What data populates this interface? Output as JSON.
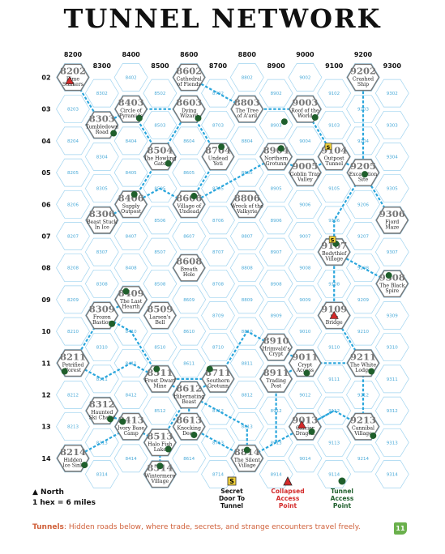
{
  "title": "TUNNEL NETWORK",
  "columns": [
    "8200",
    "8300",
    "8400",
    "8500",
    "8600",
    "8700",
    "8800",
    "8900",
    "9000",
    "9100",
    "9200",
    "9300"
  ],
  "rows": [
    "02",
    "03",
    "04",
    "05",
    "06",
    "07",
    "08",
    "09",
    "10",
    "11",
    "12",
    "13",
    "14"
  ],
  "locations": [
    {
      "id": "8202",
      "name": [
        "Rime",
        "Stalkers"
      ]
    },
    {
      "id": "8303",
      "name": [
        "Tumbledown",
        "Road"
      ]
    },
    {
      "id": "8403",
      "name": [
        "Circle of",
        "Pyramids"
      ]
    },
    {
      "id": "8306",
      "name": [
        "Beast Stuck",
        "In Ice"
      ]
    },
    {
      "id": "8309",
      "name": [
        "Frozen",
        "Bastion"
      ]
    },
    {
      "id": "8211",
      "name": [
        "Petrified",
        "Forest"
      ]
    },
    {
      "id": "8312",
      "name": [
        "Haunted",
        "Ski Chalet"
      ]
    },
    {
      "id": "8214",
      "name": [
        "Hidden",
        "Ice Sink"
      ]
    },
    {
      "id": "8406",
      "name": [
        "Supply",
        "Outpost"
      ]
    },
    {
      "id": "8409",
      "name": [
        "The Last",
        "Hearth"
      ]
    },
    {
      "id": "8413",
      "name": [
        "Ivory Base",
        "Camp"
      ]
    },
    {
      "id": "8504",
      "name": [
        "The Howling",
        "Gate"
      ]
    },
    {
      "id": "8509",
      "name": [
        "Larsen's",
        "Bell"
      ]
    },
    {
      "id": "8511",
      "name": [
        "Frost Dwarf",
        "Mine"
      ]
    },
    {
      "id": "8513",
      "name": [
        "Halo Fish",
        "Lake"
      ]
    },
    {
      "id": "8514",
      "name": [
        "Wintermere",
        "Village"
      ]
    },
    {
      "id": "8602",
      "name": [
        "Cathedral",
        "of Fiends"
      ]
    },
    {
      "id": "8603",
      "name": [
        "Dying",
        "Wizard"
      ]
    },
    {
      "id": "8606",
      "name": [
        "Village of",
        "Undead"
      ]
    },
    {
      "id": "8608",
      "name": [
        "Breath",
        "Hole"
      ]
    },
    {
      "id": "8612",
      "name": [
        "Hibernating",
        "Beast"
      ]
    },
    {
      "id": "8613",
      "name": [
        "Knocking",
        "Deep"
      ]
    },
    {
      "id": "8704",
      "name": [
        "Undead",
        "Yeti"
      ]
    },
    {
      "id": "8711",
      "name": [
        "Southern",
        "Grotunn"
      ]
    },
    {
      "id": "8803",
      "name": [
        "The Tree",
        "of A'aril"
      ]
    },
    {
      "id": "8806",
      "name": [
        "Wreck of the",
        "Valkyrie"
      ]
    },
    {
      "id": "8814",
      "name": [
        "The Silent",
        "Village"
      ]
    },
    {
      "id": "8904",
      "name": [
        "Northern",
        "Grotunn"
      ]
    },
    {
      "id": "8910",
      "name": [
        "Hrimvald's",
        "Crypt"
      ]
    },
    {
      "id": "8911",
      "name": [
        "Trading",
        "Post"
      ]
    },
    {
      "id": "9003",
      "name": [
        "Roof of the",
        "World"
      ]
    },
    {
      "id": "9005",
      "name": [
        "Goblin Trap",
        "Valley"
      ]
    },
    {
      "id": "9011",
      "name": [
        "Crypt",
        "Access"
      ]
    },
    {
      "id": "9013",
      "name": [
        "Glacier",
        "Dragon"
      ]
    },
    {
      "id": "9104",
      "name": [
        "Outpost",
        "Tunnel"
      ]
    },
    {
      "id": "9107",
      "name": [
        "Bodythief",
        "Village"
      ]
    },
    {
      "id": "9109",
      "name": [
        "Icy",
        "Bridge"
      ]
    },
    {
      "id": "9202",
      "name": [
        "Crashed",
        "Ship"
      ]
    },
    {
      "id": "9205",
      "name": [
        "Excavation",
        "Site"
      ]
    },
    {
      "id": "9211",
      "name": [
        "The White",
        "Lodge"
      ]
    },
    {
      "id": "9213",
      "name": [
        "Cannibal",
        "Village"
      ]
    },
    {
      "id": "9306",
      "name": [
        "Fjord",
        "Maze"
      ]
    },
    {
      "id": "9308",
      "name": [
        "The Black",
        "Spire"
      ]
    }
  ],
  "legend": {
    "north": "▲ North",
    "scale": "1 hex = 6 miles",
    "secret_door": [
      "Secret",
      "Door To",
      "Tunnel"
    ],
    "collapsed": [
      "Collapsed",
      "Access",
      "Point"
    ],
    "access": [
      "Tunnel",
      "Access",
      "Point"
    ],
    "secret_symbol": "S"
  },
  "footer": {
    "label": "Tunnels",
    "text": ": Hidden roads below, where trade, secrets, and strange encounters travel freely."
  },
  "page_number": "11",
  "colors": {
    "grid": "#9fd3ef",
    "tunnel": "#2aa6dc",
    "access": "#1f5f2c",
    "collapsed": "#d32a2a",
    "secret": "#f2d23a"
  }
}
